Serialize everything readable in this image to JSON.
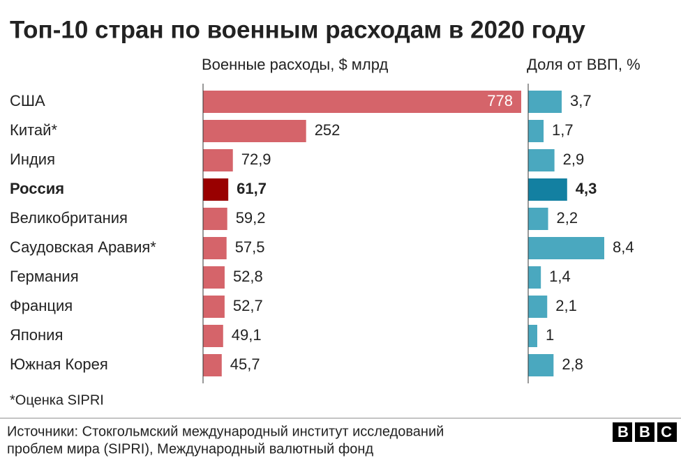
{
  "chart_data": {
    "type": "bar",
    "orientation": "horizontal",
    "title": "Топ-10 стран по военным расходам в 2020 году",
    "categories": [
      "США",
      "Китай*",
      "Индия",
      "Россия",
      "Великобритания",
      "Саудовская Аравия*",
      "Германия",
      "Франция",
      "Япония",
      "Южная Корея"
    ],
    "highlight": 3,
    "series": [
      {
        "name": "Военные расходы, $ млрд",
        "color": "#d5646a",
        "highlight_color": "#990000",
        "values": [
          778,
          252,
          72.9,
          61.7,
          59.2,
          57.5,
          52.8,
          52.7,
          49.1,
          45.7
        ],
        "value_labels": [
          "778",
          "252",
          "72,9",
          "61,7",
          "59,2",
          "57,5",
          "52,8",
          "52,7",
          "49,1",
          "45,7"
        ],
        "xlim": [
          0,
          778
        ]
      },
      {
        "name": "Доля от ВВП, %",
        "color": "#4aa8bf",
        "highlight_color": "#1380a1",
        "values": [
          3.7,
          1.7,
          2.9,
          4.3,
          2.2,
          8.4,
          1.4,
          2.1,
          1,
          2.8
        ],
        "value_labels": [
          "3,7",
          "1,7",
          "2,9",
          "4,3",
          "2,2",
          "8,4",
          "1,4",
          "2,1",
          "1",
          "2,8"
        ],
        "xlim": [
          0,
          8.4
        ]
      }
    ],
    "note": "*Оценка SIPRI",
    "source": [
      "Источники: Стокгольмский международный институт исследований",
      "проблем мира (SIPRI), Международный валютный фонд"
    ],
    "logo": "BBC"
  }
}
